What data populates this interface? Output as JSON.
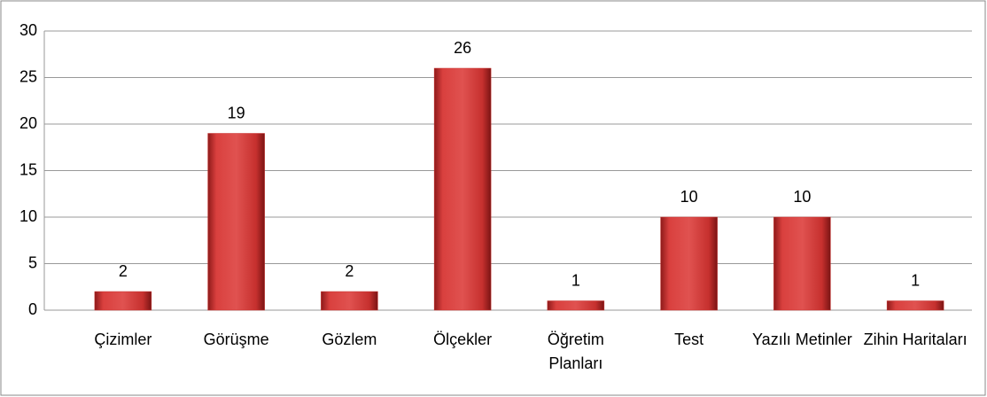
{
  "chart_data": {
    "type": "bar",
    "categories": [
      "Çizimler",
      "Görüşme",
      "Gözlem",
      "Ölçekler",
      "Öğretim Planları",
      "Test",
      "Yazılı Metinler",
      "Zihin Haritaları"
    ],
    "values": [
      2,
      19,
      2,
      26,
      1,
      10,
      10,
      1
    ],
    "color": "#c8302e",
    "ylim": [
      0,
      30
    ],
    "yticks": [
      0,
      5,
      10,
      15,
      20,
      25,
      30
    ],
    "grid": true
  }
}
